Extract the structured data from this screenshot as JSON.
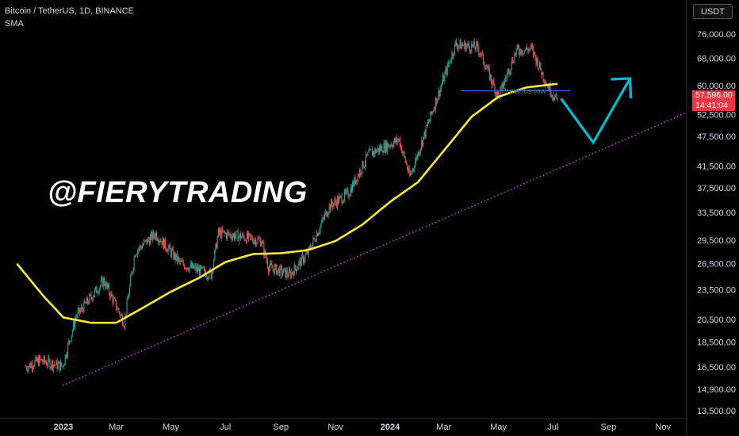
{
  "header": {
    "symbol_line": "Bitcoin / TetherUS, 1D, BINANCE",
    "indicator": "SMA"
  },
  "currency_button": "USDT",
  "watermark": "@FIERYTRADING",
  "current_price": {
    "price": "57,596.00",
    "countdown": "14:41:04"
  },
  "annotation": {
    "previous_low": "Previous low"
  },
  "colors": {
    "background": "#000000",
    "up_candle": "#26a69a",
    "down_candle": "#ef5350",
    "sma": "#ffeb3b",
    "support_trendline": "#e040fb",
    "previous_low_line": "#2962ff",
    "projection_arrow": "#00bcd4",
    "price_tag": "#f23645"
  },
  "chart_data": {
    "type": "candlestick",
    "scale": "log",
    "x_ticks": [
      "2023",
      "Mar",
      "May",
      "Jul",
      "Sep",
      "Nov",
      "2024",
      "Mar",
      "May",
      "Jul",
      "Sep",
      "Nov"
    ],
    "x_ticks_bold": [
      "2023",
      "2024"
    ],
    "x_tick_dates": [
      "2023-01-01",
      "2023-03-01",
      "2023-05-01",
      "2023-07-01",
      "2023-09-01",
      "2023-11-01",
      "2024-01-01",
      "2024-03-01",
      "2024-05-01",
      "2024-07-01",
      "2024-09-01",
      "2024-11-01"
    ],
    "y_ticks": [
      "76,000.00",
      "68,000.00",
      "60,000.00",
      "52,500.00",
      "47,500.00",
      "41,500.00",
      "37,500.00",
      "33,500.00",
      "29,500.00",
      "26,500.00",
      "23,500.00",
      "20,500.00",
      "18,500.00",
      "16,500.00",
      "14,900.00",
      "13,500.00"
    ],
    "y_tick_values": [
      76000,
      68000,
      60000,
      52500,
      47500,
      41500,
      37500,
      33500,
      29500,
      26500,
      23500,
      20500,
      18500,
      16500,
      14900,
      13500
    ],
    "price_anchors": [
      [
        "2022-11-20",
        16500
      ],
      [
        "2022-12-05",
        17000
      ],
      [
        "2022-12-31",
        16550
      ],
      [
        "2023-01-15",
        20800
      ],
      [
        "2023-02-15",
        24500
      ],
      [
        "2023-03-10",
        20200
      ],
      [
        "2023-03-22",
        28000
      ],
      [
        "2023-04-14",
        30400
      ],
      [
        "2023-05-12",
        26500
      ],
      [
        "2023-06-15",
        25200
      ],
      [
        "2023-06-23",
        30500
      ],
      [
        "2023-07-15",
        30100
      ],
      [
        "2023-08-10",
        29400
      ],
      [
        "2023-08-18",
        26100
      ],
      [
        "2023-09-11",
        25200
      ],
      [
        "2023-10-01",
        27800
      ],
      [
        "2023-10-25",
        34500
      ],
      [
        "2023-11-15",
        36500
      ],
      [
        "2023-12-08",
        43800
      ],
      [
        "2024-01-11",
        46800
      ],
      [
        "2024-01-23",
        39500
      ],
      [
        "2024-02-15",
        52000
      ],
      [
        "2024-03-14",
        72500
      ],
      [
        "2024-04-08",
        71500
      ],
      [
        "2024-05-01",
        57000
      ],
      [
        "2024-05-21",
        70500
      ],
      [
        "2024-06-07",
        71000
      ],
      [
        "2024-06-24",
        60500
      ],
      [
        "2024-07-05",
        56000
      ],
      [
        "2024-07-06",
        57596
      ]
    ],
    "sma_anchors": [
      [
        "2022-11-10",
        26500
      ],
      [
        "2022-12-10",
        22800
      ],
      [
        "2023-01-01",
        20700
      ],
      [
        "2023-02-01",
        20200
      ],
      [
        "2023-03-01",
        20200
      ],
      [
        "2023-04-01",
        21700
      ],
      [
        "2023-05-01",
        23300
      ],
      [
        "2023-06-01",
        24800
      ],
      [
        "2023-07-01",
        26700
      ],
      [
        "2023-08-01",
        27700
      ],
      [
        "2023-09-01",
        27800
      ],
      [
        "2023-10-01",
        28200
      ],
      [
        "2023-11-01",
        29400
      ],
      [
        "2023-12-01",
        31700
      ],
      [
        "2024-01-01",
        35200
      ],
      [
        "2024-02-01",
        38500
      ],
      [
        "2024-03-01",
        44500
      ],
      [
        "2024-04-01",
        52000
      ],
      [
        "2024-05-01",
        57000
      ],
      [
        "2024-06-01",
        59500
      ],
      [
        "2024-07-06",
        60500
      ]
    ],
    "support_trendline": [
      [
        "2022-12-31",
        15150
      ],
      [
        "2024-11-25",
        52800
      ]
    ],
    "previous_low": {
      "value": 58600,
      "from": "2024-03-20",
      "to": "2024-07-20"
    },
    "projection_arrow": [
      [
        "2024-07-10",
        56500
      ],
      [
        "2024-08-15",
        46200
      ],
      [
        "2024-09-25",
        62000
      ]
    ]
  }
}
